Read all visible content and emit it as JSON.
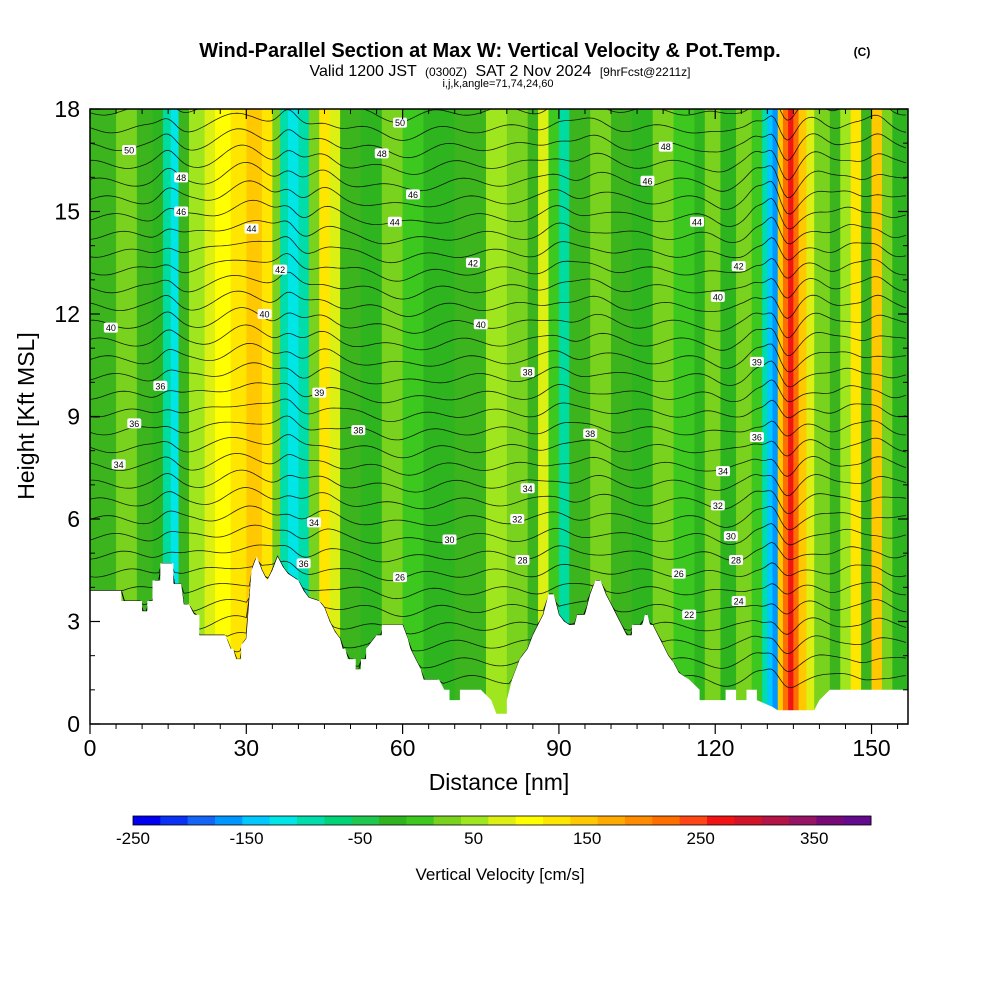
{
  "chart_data": {
    "type": "heatmap",
    "title": "Wind-Parallel Section at Max W: Vertical Velocity & Pot.Temp.",
    "title_mark": "(C)",
    "subtitle_prefix": "Valid 1200 JST",
    "subtitle_utc": "(0300Z)",
    "subtitle_date": "SAT 2 Nov 2024",
    "subtitle_fcst": "[9hrFcst@2211z]",
    "subtitle2": "i,j,k,angle=71,74,24,60",
    "xlabel": "Distance [nm]",
    "ylabel": "Height [Kft MSL]",
    "xlim": [
      0,
      157
    ],
    "ylim": [
      0,
      18
    ],
    "x_ticks": [
      0,
      30,
      60,
      90,
      120,
      150
    ],
    "y_ticks": [
      0,
      3,
      6,
      9,
      12,
      15,
      18
    ],
    "colorbar": {
      "label": "Vertical Velocity [cm/s]",
      "tick_labels": [
        "-250",
        "-150",
        "-50",
        "50",
        "150",
        "250",
        "350"
      ],
      "tick_values": [
        -250,
        -150,
        -50,
        50,
        150,
        250,
        350
      ],
      "range": [
        -250,
        400
      ],
      "colors": [
        "#0000ee",
        "#0a32f5",
        "#1464f5",
        "#0096ff",
        "#00c8ff",
        "#00e6e6",
        "#00dcaa",
        "#00d278",
        "#1ec850",
        "#2db41e",
        "#3cc81e",
        "#78d21e",
        "#a0e61e",
        "#dcf014",
        "#ffff00",
        "#ffe600",
        "#ffc800",
        "#ffaa00",
        "#ff8c00",
        "#ff6e00",
        "#ff4614",
        "#f01414",
        "#d21428",
        "#b41446",
        "#961464",
        "#780a78",
        "#640a8c"
      ]
    },
    "contour_labels": [
      {
        "x": 7.5,
        "y": 16.8,
        "text": "50"
      },
      {
        "x": 17.5,
        "y": 16.0,
        "text": "48"
      },
      {
        "x": 17.5,
        "y": 15.0,
        "text": "46"
      },
      {
        "x": 31.0,
        "y": 14.5,
        "text": "44"
      },
      {
        "x": 36.5,
        "y": 13.3,
        "text": "42"
      },
      {
        "x": 33.5,
        "y": 12.0,
        "text": "40"
      },
      {
        "x": 4.0,
        "y": 11.6,
        "text": "40"
      },
      {
        "x": 13.5,
        "y": 9.9,
        "text": "36"
      },
      {
        "x": 8.5,
        "y": 8.8,
        "text": "36"
      },
      {
        "x": 5.5,
        "y": 7.6,
        "text": "34"
      },
      {
        "x": 59.5,
        "y": 17.6,
        "text": "50"
      },
      {
        "x": 56.0,
        "y": 16.7,
        "text": "48"
      },
      {
        "x": 62.0,
        "y": 15.5,
        "text": "46"
      },
      {
        "x": 58.5,
        "y": 14.7,
        "text": "44"
      },
      {
        "x": 73.5,
        "y": 13.5,
        "text": "42"
      },
      {
        "x": 75.0,
        "y": 11.7,
        "text": "40"
      },
      {
        "x": 44.0,
        "y": 9.7,
        "text": "39"
      },
      {
        "x": 51.5,
        "y": 8.6,
        "text": "38"
      },
      {
        "x": 84.0,
        "y": 10.3,
        "text": "38"
      },
      {
        "x": 96.0,
        "y": 8.5,
        "text": "38"
      },
      {
        "x": 84.0,
        "y": 6.9,
        "text": "34"
      },
      {
        "x": 82.0,
        "y": 6.0,
        "text": "32"
      },
      {
        "x": 43.0,
        "y": 5.9,
        "text": "34"
      },
      {
        "x": 41.0,
        "y": 4.7,
        "text": "36"
      },
      {
        "x": 69.0,
        "y": 5.4,
        "text": "30"
      },
      {
        "x": 83.0,
        "y": 4.8,
        "text": "28"
      },
      {
        "x": 59.5,
        "y": 4.3,
        "text": "26"
      },
      {
        "x": 110.5,
        "y": 16.9,
        "text": "48"
      },
      {
        "x": 107.0,
        "y": 15.9,
        "text": "46"
      },
      {
        "x": 116.5,
        "y": 14.7,
        "text": "44"
      },
      {
        "x": 124.5,
        "y": 13.4,
        "text": "42"
      },
      {
        "x": 120.5,
        "y": 12.5,
        "text": "40"
      },
      {
        "x": 128.0,
        "y": 10.6,
        "text": "39"
      },
      {
        "x": 128.0,
        "y": 8.4,
        "text": "36"
      },
      {
        "x": 121.5,
        "y": 7.4,
        "text": "34"
      },
      {
        "x": 120.5,
        "y": 6.4,
        "text": "32"
      },
      {
        "x": 123.0,
        "y": 5.5,
        "text": "30"
      },
      {
        "x": 124.0,
        "y": 4.8,
        "text": "28"
      },
      {
        "x": 113.0,
        "y": 4.4,
        "text": "26"
      },
      {
        "x": 124.5,
        "y": 3.6,
        "text": "24"
      },
      {
        "x": 115.0,
        "y": 3.2,
        "text": "22"
      }
    ]
  }
}
